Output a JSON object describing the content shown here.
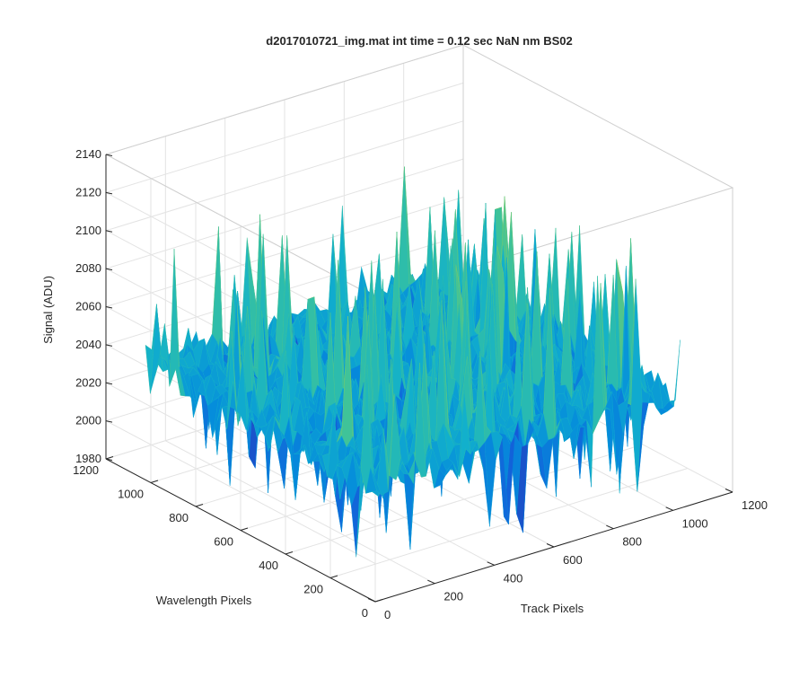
{
  "chart_data": {
    "type": "surface",
    "title": "d2017010721_img.mat int time = 0.12 sec  NaN nm BS02",
    "xlabel": "Track Pixels",
    "ylabel": "Wavelength Pixels",
    "zlabel": "Signal (ADU)",
    "x_ticks": [
      0,
      200,
      400,
      600,
      800,
      1000,
      1200
    ],
    "y_ticks": [
      0,
      200,
      400,
      600,
      800,
      1000,
      1200
    ],
    "z_ticks": [
      1980,
      2000,
      2020,
      2040,
      2060,
      2080,
      2100,
      2120,
      2140
    ],
    "xlim": [
      0,
      1200
    ],
    "ylim": [
      0,
      1200
    ],
    "zlim": [
      1980,
      2140
    ],
    "data_extent": {
      "x": [
        0,
        1024
      ],
      "y": [
        0,
        1024
      ]
    },
    "surface_summary": {
      "mean_signal": 2040,
      "typical_range": [
        2000,
        2080
      ],
      "peak_signal": 2135,
      "min_signal": 1985
    },
    "colormap": "parula",
    "grid": true
  }
}
